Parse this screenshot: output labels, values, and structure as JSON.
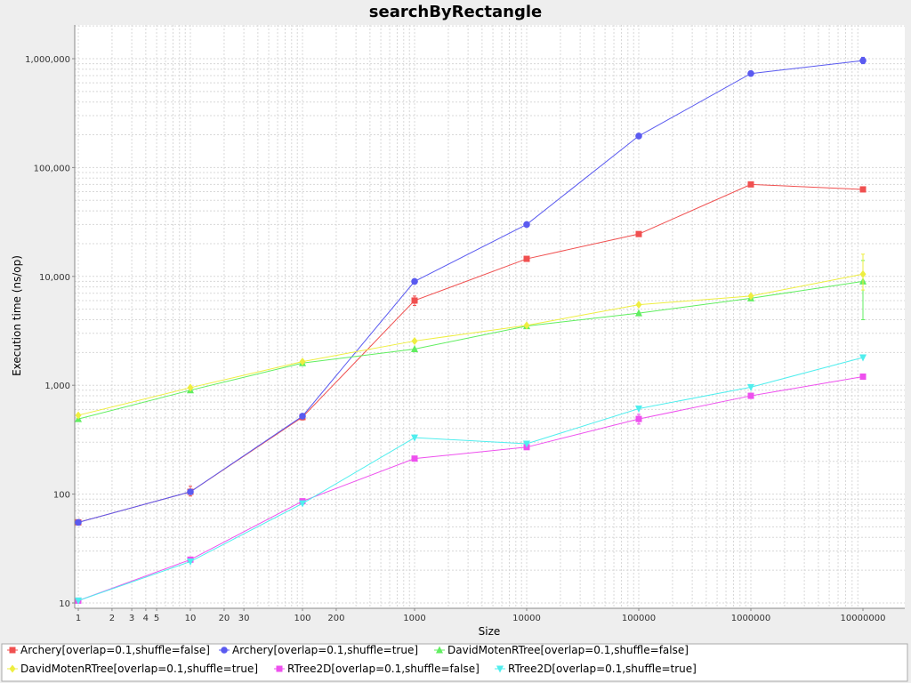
{
  "chart_data": {
    "type": "line",
    "title": "searchByRectangle",
    "xlabel": "Size",
    "ylabel": "Execution time (ns/op)",
    "x_scale": "log",
    "y_scale": "log",
    "xlim": [
      1,
      10000000
    ],
    "ylim": [
      10,
      2000000
    ],
    "grid": true,
    "legend_position": "bottom",
    "x_ticks": [
      {
        "value": 1,
        "label": "1"
      },
      {
        "value": 2,
        "label": "2"
      },
      {
        "value": 3,
        "label": "3"
      },
      {
        "value": 4,
        "label": "4"
      },
      {
        "value": 5,
        "label": "5"
      },
      {
        "value": 10,
        "label": "10"
      },
      {
        "value": 20,
        "label": "20"
      },
      {
        "value": 30,
        "label": "30"
      },
      {
        "value": 100,
        "label": "100"
      },
      {
        "value": 200,
        "label": "200"
      },
      {
        "value": 1000,
        "label": "1000"
      },
      {
        "value": 10000,
        "label": "10000"
      },
      {
        "value": 100000,
        "label": "100000"
      },
      {
        "value": 1000000,
        "label": "1000000"
      },
      {
        "value": 10000000,
        "label": "10000000"
      }
    ],
    "y_ticks": [
      {
        "value": 10,
        "label": "10"
      },
      {
        "value": 100,
        "label": "100"
      },
      {
        "value": 1000,
        "label": "1,000"
      },
      {
        "value": 10000,
        "label": "10,000"
      },
      {
        "value": 100000,
        "label": "100,000"
      },
      {
        "value": 1000000,
        "label": "1,000,000"
      }
    ],
    "series": [
      {
        "name": "Archery[overlap=0.1,shuffle=false]",
        "color": "#f05050",
        "marker": "square",
        "x": [
          1,
          10,
          100,
          1000,
          10000,
          100000,
          1000000,
          10000000
        ],
        "y": [
          55,
          105,
          510,
          6000,
          14500,
          24500,
          70000,
          63000
        ],
        "err": [
          [
            53,
            57
          ],
          [
            96,
            118
          ],
          [
            480,
            540
          ],
          [
            5400,
            6600
          ],
          null,
          null,
          null,
          null
        ]
      },
      {
        "name": "Archery[overlap=0.1,shuffle=true]",
        "color": "#5a5af0",
        "marker": "circle",
        "x": [
          1,
          10,
          100,
          1000,
          10000,
          100000,
          1000000,
          10000000
        ],
        "y": [
          55,
          105,
          520,
          9000,
          30000,
          195000,
          730000,
          960000
        ],
        "err": [
          null,
          null,
          null,
          null,
          null,
          null,
          null,
          [
            900000,
            1030000
          ]
        ]
      },
      {
        "name": "DavidMotenRTree[overlap=0.1,shuffle=false]",
        "color": "#60ee60",
        "marker": "triangle-up",
        "x": [
          1,
          10,
          100,
          1000,
          10000,
          100000,
          1000000,
          10000000
        ],
        "y": [
          490,
          900,
          1600,
          2150,
          3500,
          4600,
          6300,
          9000
        ],
        "err": [
          null,
          null,
          null,
          null,
          null,
          null,
          null,
          [
            4000,
            14000
          ]
        ]
      },
      {
        "name": "DavidMotenRTree[overlap=0.1,shuffle=true]",
        "color": "#eeee40",
        "marker": "diamond",
        "x": [
          1,
          10,
          100,
          1000,
          10000,
          100000,
          1000000,
          10000000
        ],
        "y": [
          530,
          950,
          1650,
          2550,
          3550,
          5500,
          6600,
          10500
        ],
        "err": [
          null,
          null,
          null,
          null,
          null,
          null,
          null,
          [
            7500,
            16000
          ]
        ]
      },
      {
        "name": "RTree2D[overlap=0.1,shuffle=false]",
        "color": "#ee50ee",
        "marker": "square",
        "x": [
          1,
          10,
          100,
          1000,
          10000,
          100000,
          1000000,
          10000000
        ],
        "y": [
          10.5,
          25,
          86,
          212,
          270,
          490,
          800,
          1200
        ],
        "err": [
          null,
          null,
          null,
          null,
          null,
          [
            440,
            540
          ],
          null,
          null
        ]
      },
      {
        "name": "RTree2D[overlap=0.1,shuffle=true]",
        "color": "#50eeee",
        "marker": "triangle-down",
        "x": [
          1,
          10,
          100,
          1000,
          10000,
          100000,
          1000000,
          10000000
        ],
        "y": [
          10.5,
          24,
          82,
          330,
          290,
          610,
          960,
          1800
        ],
        "err": [
          null,
          null,
          null,
          null,
          null,
          null,
          null,
          null
        ]
      }
    ]
  }
}
